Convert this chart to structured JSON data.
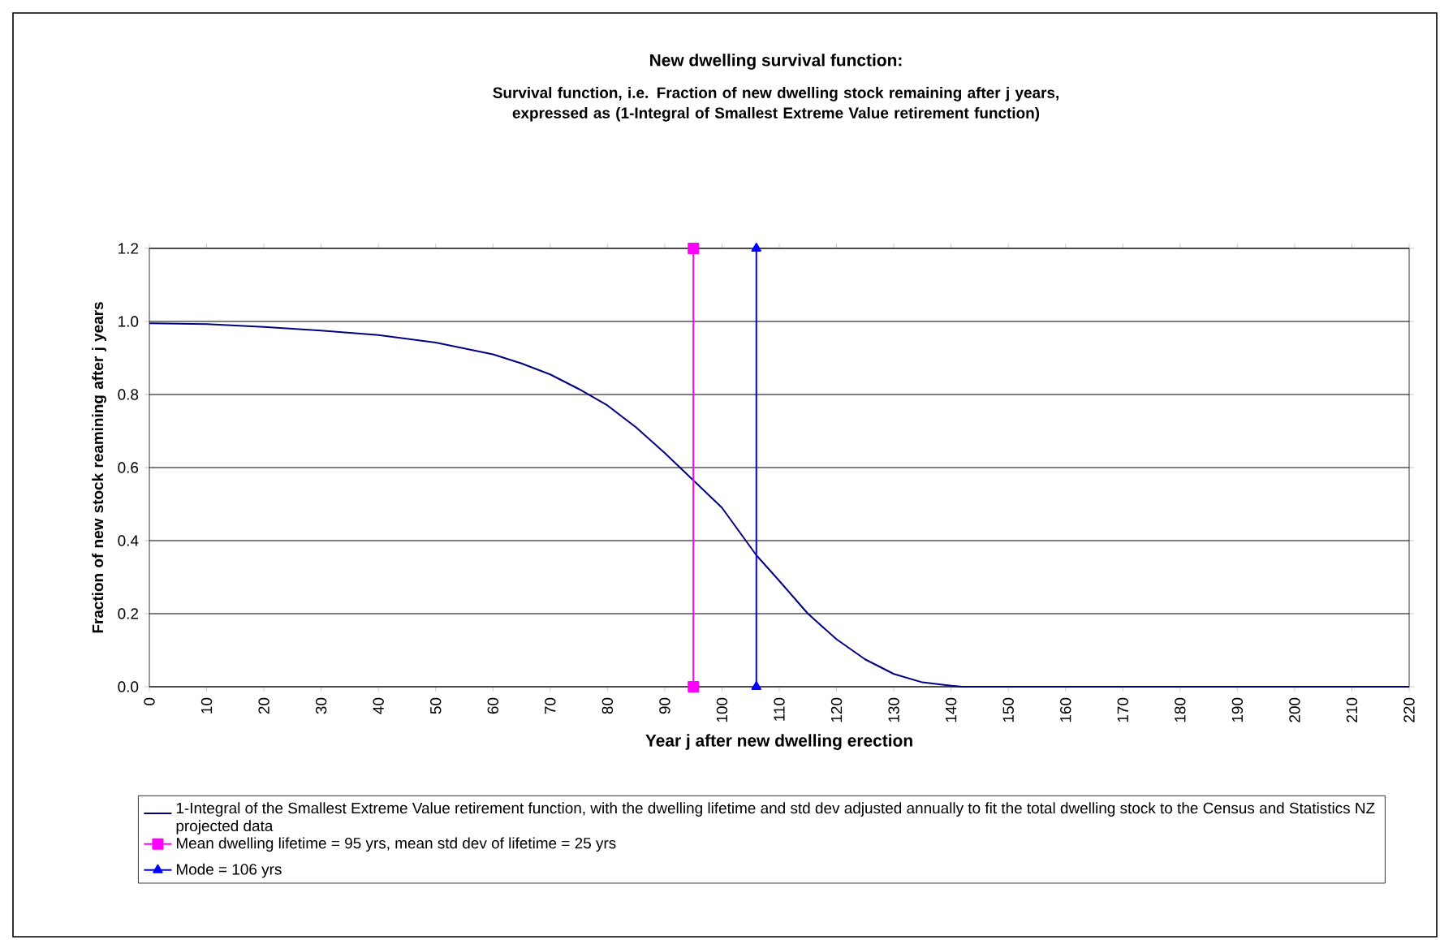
{
  "chart_data": {
    "type": "line",
    "title": "New dwelling survival function:",
    "subtitle": "Survival function, i.e. Fraction of new dwelling stock remaining after j years, expressed as (1-Integral of Smallest Extreme Value retirement function)",
    "xlabel": "Year j after new dwelling erection",
    "ylabel": "Fraction of new stock reamining after j years",
    "xlim": [
      0,
      220
    ],
    "ylim": [
      0,
      1.2
    ],
    "xticks": [
      0,
      10,
      20,
      30,
      40,
      50,
      60,
      70,
      80,
      90,
      100,
      110,
      120,
      130,
      140,
      150,
      160,
      170,
      180,
      190,
      200,
      210,
      220
    ],
    "yticks": [
      {
        "value": 0,
        "label": "0.0"
      },
      {
        "value": 0.2,
        "label": "0.2"
      },
      {
        "value": 0.4,
        "label": "0.4"
      },
      {
        "value": 0.6,
        "label": "0.6"
      },
      {
        "value": 0.8,
        "label": "0.8"
      },
      {
        "value": 1.0,
        "label": "1.0"
      },
      {
        "value": 1.2,
        "label": "1.2"
      }
    ],
    "grid": "y",
    "legend": "bottom",
    "series": [
      {
        "name": "1-Integral of the Smallest Extreme Value retirement function, with the dwelling lifetime and std dev adjusted annually to fit the total dwelling stock to the Census and Statistics NZ projected data",
        "color": "#000080",
        "marker": "none",
        "x": [
          0,
          10,
          20,
          30,
          40,
          50,
          60,
          65,
          70,
          75,
          80,
          85,
          90,
          95,
          100,
          106,
          110,
          115,
          120,
          125,
          130,
          135,
          140,
          142,
          150,
          220
        ],
        "values": [
          0.995,
          0.993,
          0.985,
          0.975,
          0.963,
          0.942,
          0.91,
          0.885,
          0.855,
          0.815,
          0.77,
          0.71,
          0.64,
          0.565,
          0.49,
          0.36,
          0.29,
          0.2,
          0.13,
          0.075,
          0.035,
          0.012,
          0.003,
          0,
          0,
          0
        ]
      },
      {
        "name": "Mean dwelling lifetime = 95 yrs, mean std dev of lifetime = 25 yrs",
        "color": "#ff00ff",
        "marker": "square",
        "x": [
          95,
          95
        ],
        "values": [
          0,
          1.2
        ]
      },
      {
        "name": "Mode = 106 yrs",
        "color": "#0000ff",
        "marker": "triangle",
        "x": [
          106,
          106
        ],
        "values": [
          0,
          1.2
        ]
      }
    ]
  }
}
